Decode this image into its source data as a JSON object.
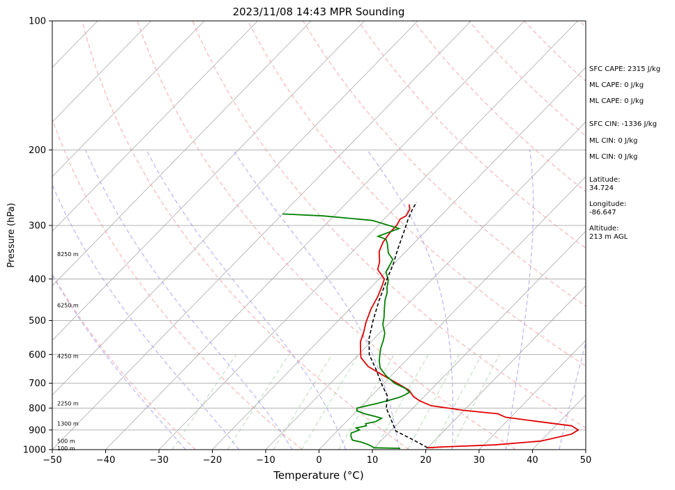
{
  "chart_data": {
    "type": "line",
    "title": "2023/11/08 14:43 MPR Sounding",
    "xlabel": "Temperature (°C)",
    "ylabel": "Pressure (hPa)",
    "xlim": [
      -50,
      50
    ],
    "ylim": [
      1000,
      100
    ],
    "y_scale": "log",
    "skew": true,
    "grid": true,
    "x_ticks": [
      "−50",
      "−40",
      "−30",
      "−20",
      "−10",
      "0",
      "10",
      "20",
      "30",
      "40",
      "50"
    ],
    "x_tick_values": [
      -50,
      -40,
      -30,
      -20,
      -10,
      0,
      10,
      20,
      30,
      40,
      50
    ],
    "y_ticks": [
      "100",
      "200",
      "300",
      "400",
      "500",
      "600",
      "700",
      "800",
      "900",
      "1000"
    ],
    "y_tick_values": [
      100,
      200,
      300,
      400,
      500,
      600,
      700,
      800,
      900,
      1000
    ],
    "height_labels": [
      {
        "label": "100 m",
        "p": 993
      },
      {
        "label": "500 m",
        "p": 955
      },
      {
        "label": "1300 m",
        "p": 870
      },
      {
        "label": "2250 m",
        "p": 780
      },
      {
        "label": "4250 m",
        "p": 605
      },
      {
        "label": "6250 m",
        "p": 460
      },
      {
        "label": "8250 m",
        "p": 350
      }
    ],
    "series": [
      {
        "color": "#e00000",
        "points": [
          [
            20,
            990
          ],
          [
            23,
            985
          ],
          [
            32,
            975
          ],
          [
            40,
            955
          ],
          [
            44.5,
            920
          ],
          [
            45,
            900
          ],
          [
            43,
            880
          ],
          [
            36,
            860
          ],
          [
            29,
            840
          ],
          [
            27,
            825
          ],
          [
            20,
            810
          ],
          [
            13,
            790
          ],
          [
            10,
            770
          ],
          [
            8,
            752
          ],
          [
            6,
            727
          ],
          [
            2.5,
            700
          ],
          [
            -2,
            668
          ],
          [
            -6,
            640
          ],
          [
            -9,
            610
          ],
          [
            -10.5,
            585
          ],
          [
            -12,
            560
          ],
          [
            -13,
            535
          ],
          [
            -14.5,
            505
          ],
          [
            -16,
            470
          ],
          [
            -17,
            440
          ],
          [
            -18,
            418
          ],
          [
            -19,
            400
          ],
          [
            -22,
            380
          ],
          [
            -23,
            365
          ],
          [
            -25,
            345
          ],
          [
            -26,
            328
          ],
          [
            -26.5,
            310
          ],
          [
            -26.5,
            300
          ],
          [
            -27,
            290
          ],
          [
            -26.5,
            285
          ],
          [
            -27,
            275
          ],
          [
            -28,
            268
          ]
        ]
      },
      {
        "color": "#008000",
        "points": [
          [
            15,
            993
          ],
          [
            10,
            990
          ],
          [
            8.5,
            975
          ],
          [
            6.5,
            960
          ],
          [
            4.5,
            950
          ],
          [
            3.5,
            930
          ],
          [
            3,
            915
          ],
          [
            4,
            900
          ],
          [
            3,
            890
          ],
          [
            4.5,
            880
          ],
          [
            4,
            870
          ],
          [
            5.5,
            860
          ],
          [
            6,
            845
          ],
          [
            4.5,
            837
          ],
          [
            2,
            825
          ],
          [
            0,
            812
          ],
          [
            -0.5,
            800
          ],
          [
            1,
            790
          ],
          [
            2.5,
            780
          ],
          [
            4,
            768
          ],
          [
            5.5,
            755
          ],
          [
            6,
            747
          ],
          [
            6.5,
            735
          ],
          [
            5,
            720
          ],
          [
            2,
            700
          ],
          [
            -1,
            672
          ],
          [
            -3.5,
            645
          ],
          [
            -5,
            620
          ],
          [
            -6,
            600
          ],
          [
            -7,
            580
          ],
          [
            -8,
            555
          ],
          [
            -9,
            535
          ],
          [
            -11,
            510
          ],
          [
            -12,
            492
          ],
          [
            -13.5,
            470
          ],
          [
            -15,
            448
          ],
          [
            -16,
            430
          ],
          [
            -17,
            418
          ],
          [
            -18,
            403
          ],
          [
            -20,
            385
          ],
          [
            -20.5,
            372
          ],
          [
            -21,
            360
          ],
          [
            -23,
            348
          ],
          [
            -25,
            330
          ],
          [
            -26,
            323
          ],
          [
            -28,
            318
          ],
          [
            -25.5,
            305
          ],
          [
            -32,
            292
          ],
          [
            -42,
            285
          ],
          [
            -50,
            282
          ]
        ]
      },
      {
        "color": "#000000",
        "points": [
          [
            20,
            990
          ],
          [
            16,
            950
          ],
          [
            11,
            905
          ],
          [
            5,
            800
          ],
          [
            3,
            750
          ],
          [
            -0.5,
            700
          ],
          [
            -4,
            650
          ],
          [
            -8,
            600
          ],
          [
            -11,
            550
          ],
          [
            -13.5,
            500
          ],
          [
            -16,
            450
          ],
          [
            -18.5,
            400
          ],
          [
            -20,
            370
          ],
          [
            -22,
            340
          ],
          [
            -24,
            310
          ],
          [
            -25.5,
            290
          ],
          [
            -26.5,
            275
          ],
          [
            -27,
            265
          ]
        ]
      }
    ],
    "annotations": [
      "SFC CAPE: 2315 J/kg",
      "ML CAPE: 0 J/kg",
      "ML CAPE: 0 J/kg",
      "SFC CIN: -1336 J/kg",
      "ML CIN: 0 J/kg",
      "ML CIN: 0 J/kg",
      "Latitude:",
      "34.724",
      "Longitude:",
      "-86.647",
      "Altitude:",
      "213 m AGL"
    ]
  }
}
